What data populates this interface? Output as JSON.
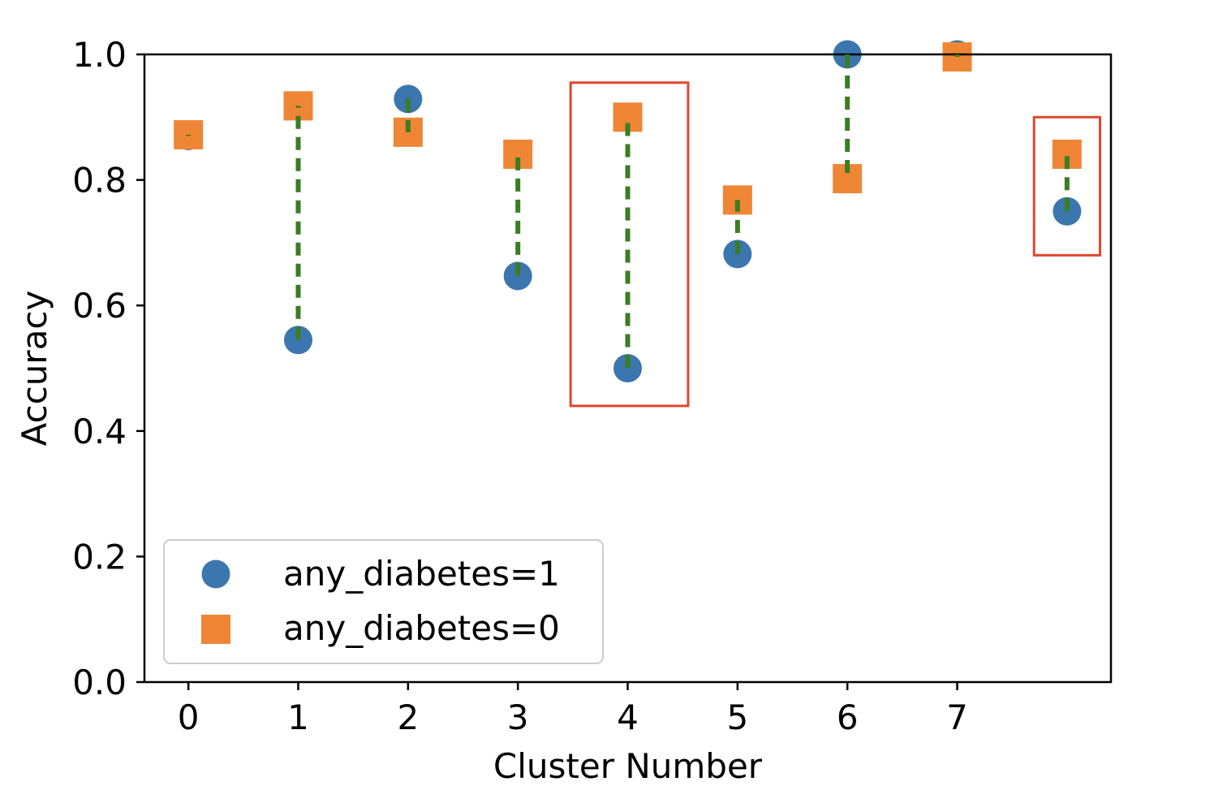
{
  "chart_data": {
    "type": "scatter",
    "xlabel": "Cluster Number",
    "ylabel": "Accuracy",
    "xlim": [
      -0.4,
      8.4
    ],
    "ylim": [
      0,
      1
    ],
    "x_ticks": [
      0,
      1,
      2,
      3,
      4,
      5,
      6,
      7
    ],
    "x_tick_labels": [
      "0",
      "1",
      "2",
      "3",
      "4",
      "5",
      "6",
      "7"
    ],
    "y_ticks": [
      0,
      0.2,
      0.4,
      0.6,
      0.8,
      1.0
    ],
    "y_tick_labels": [
      "0.0",
      "0.2",
      "0.4",
      "0.6",
      "0.8",
      "1.0"
    ],
    "grid": false,
    "legend_position": "lower-left",
    "series": [
      {
        "name": "any_diabetes=1",
        "marker": "circle",
        "color": "#3b76af",
        "x": [
          0,
          1,
          2,
          3,
          4,
          5,
          6,
          7,
          8
        ],
        "y": [
          0.87,
          0.545,
          0.929,
          0.647,
          0.5,
          0.682,
          1.0,
          1.0,
          0.75
        ]
      },
      {
        "name": "any_diabetes=0",
        "marker": "square",
        "color": "#ef8636",
        "x": [
          0,
          1,
          2,
          3,
          4,
          5,
          6,
          7,
          8
        ],
        "y": [
          0.872,
          0.918,
          0.876,
          0.841,
          0.9,
          0.768,
          0.802,
          0.996,
          0.841
        ]
      }
    ],
    "gap_lines": {
      "color": "#3a7d22",
      "style": "dashed"
    },
    "highlight_boxes": [
      {
        "x": [
          3.48,
          4.55
        ],
        "y": [
          0.44,
          0.955
        ],
        "color": "#e0472f"
      },
      {
        "x": [
          7.7,
          8.3
        ],
        "y": [
          0.68,
          0.9
        ],
        "color": "#e0472f"
      }
    ]
  }
}
